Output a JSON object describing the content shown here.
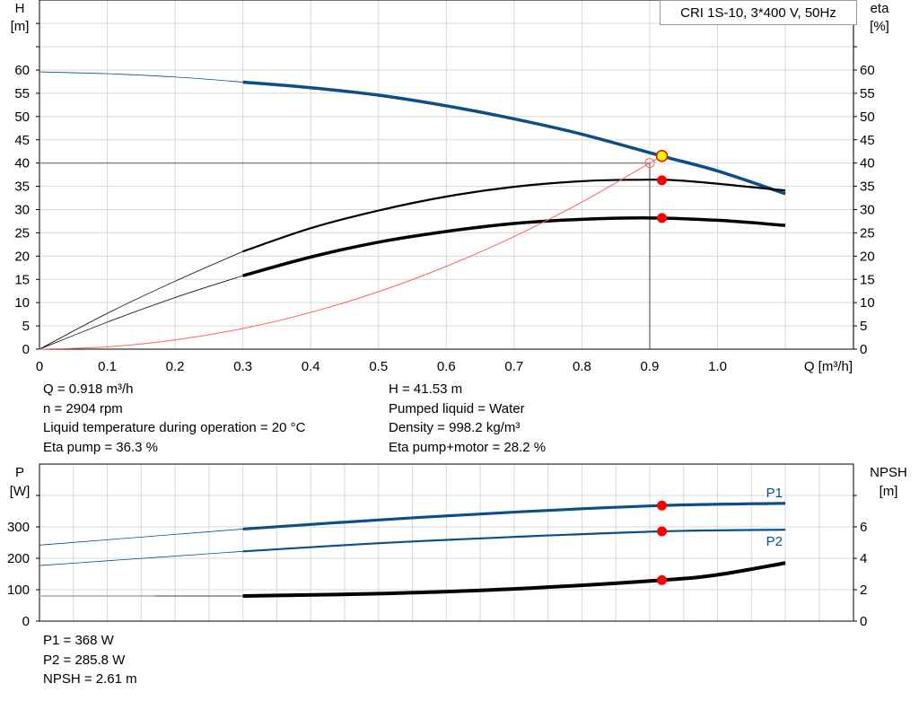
{
  "title_box": "CRI 1S-10, 3*400 V, 50Hz",
  "info_top": {
    "left": [
      "Q = 0.918 m³/h",
      "n = 2904 rpm",
      "Liquid temperature during operation = 20 °C",
      "Eta pump = 36.3 %"
    ],
    "right": [
      "H = 41.53 m",
      "Pumped liquid = Water",
      "Density = 998.2 kg/m³",
      "Eta pump+motor = 28.2 %"
    ]
  },
  "info_bottom": [
    "P1 = 368 W",
    "P2 = 285.8 W",
    "NPSH = 2.61 m"
  ],
  "colors": {
    "blue": "#0b4f8a",
    "black": "#000000",
    "red": "#ff0000",
    "system": "#ff6060",
    "point_fill": "#ffff00",
    "grid": "#d8d8d8"
  },
  "chart_data": [
    {
      "type": "line",
      "title": "",
      "xlabel": "Q [m³/h]",
      "ylabel": "H",
      "ylabel_unit": "[m]",
      "y2label": "eta",
      "y2label_unit": "[%]",
      "xlim": [
        0,
        1.2
      ],
      "ylim": [
        0,
        75
      ],
      "y2lim": [
        0,
        75
      ],
      "grid": true,
      "xticks": [
        "0",
        "0.1",
        "0.2",
        "0.3",
        "0.4",
        "0.5",
        "0.6",
        "0.7",
        "0.8",
        "0.9",
        "1.0"
      ],
      "yticks": [
        "0",
        "5",
        "10",
        "15",
        "20",
        "25",
        "30",
        "35",
        "40",
        "45",
        "50",
        "55",
        "60"
      ],
      "series": [
        {
          "id": "H",
          "axis": "left",
          "color": "#0b4f8a",
          "x": [
            0,
            0.1,
            0.2,
            0.3,
            0.4,
            0.5,
            0.6,
            0.7,
            0.8,
            0.918,
            1.0,
            1.1
          ],
          "y": [
            59.6,
            59.2,
            58.5,
            57.4,
            56.2,
            54.6,
            52.3,
            49.5,
            46.2,
            41.5,
            38.3,
            33.4
          ],
          "thick_from": 0.3
        },
        {
          "id": "eta_pump",
          "axis": "right",
          "color": "#000000",
          "x": [
            0,
            0.1,
            0.2,
            0.3,
            0.4,
            0.5,
            0.6,
            0.7,
            0.8,
            0.88,
            0.95,
            1.1
          ],
          "y": [
            0,
            7.7,
            14.6,
            21,
            26,
            29.8,
            32.8,
            34.9,
            36.1,
            36.4,
            36.2,
            34.1
          ],
          "thick_from": 0.3
        },
        {
          "id": "eta_pump_motor",
          "axis": "right",
          "color": "#000000",
          "x": [
            0,
            0.1,
            0.2,
            0.3,
            0.4,
            0.5,
            0.6,
            0.7,
            0.8,
            0.9,
            1.0,
            1.1
          ],
          "y": [
            0,
            5.8,
            11.1,
            15.8,
            19.8,
            23,
            25.3,
            27,
            27.9,
            28.2,
            27.7,
            26.6
          ],
          "thick_from": 0.3,
          "heavy": true
        },
        {
          "id": "system",
          "axis": "left",
          "color": "#ff6060",
          "x": [
            0,
            0.1,
            0.2,
            0.3,
            0.4,
            0.5,
            0.6,
            0.7,
            0.8,
            0.9,
            0.918
          ],
          "y": [
            0,
            0.49,
            1.98,
            4.44,
            7.9,
            12.35,
            17.8,
            24.2,
            31.6,
            40,
            41.5
          ]
        }
      ],
      "required_point": {
        "q": 0.9,
        "h": 40
      },
      "operating_point": {
        "q": 0.918,
        "h": 41.53,
        "eta_pump": 36.3,
        "eta_pump_motor": 28.2
      }
    },
    {
      "type": "line",
      "title": "",
      "ylabel": "P",
      "ylabel_unit": "[W]",
      "y2label": "NPSH",
      "y2label_unit": "[m]",
      "xlim": [
        0,
        1.2
      ],
      "ylim": [
        0,
        500
      ],
      "y2lim": [
        0,
        10
      ],
      "grid": true,
      "yticks": [
        "0",
        "100",
        "200",
        "300"
      ],
      "y2ticks": [
        "0",
        "2",
        "4",
        "6"
      ],
      "series": [
        {
          "id": "P1",
          "name": "P1",
          "axis": "left",
          "color": "#0b4f8a",
          "x": [
            0,
            0.1,
            0.2,
            0.3,
            0.5,
            0.7,
            0.918,
            1.1
          ],
          "y": [
            242,
            259,
            276,
            293,
            322,
            347,
            368,
            375
          ],
          "thick_from": 0.3
        },
        {
          "id": "P2",
          "name": "P2",
          "axis": "left",
          "color": "#0b4f8a",
          "x": [
            0,
            0.1,
            0.2,
            0.3,
            0.5,
            0.7,
            0.918,
            1.1
          ],
          "y": [
            177,
            192,
            207,
            222,
            248,
            268,
            285.8,
            291
          ],
          "thick_from": 0.3,
          "medium": true
        },
        {
          "id": "NPSH",
          "axis": "right",
          "color": "#000000",
          "x": [
            0,
            0.2,
            0.3,
            0.5,
            0.7,
            0.918,
            1.0,
            1.1
          ],
          "y": [
            1.6,
            1.6,
            1.6,
            1.75,
            2.05,
            2.61,
            2.95,
            3.7
          ],
          "thick_from": 0.3,
          "heavy": true
        }
      ],
      "operating_point": {
        "q": 0.918,
        "P1": 368,
        "P2": 285.8,
        "NPSH": 2.61
      }
    }
  ]
}
